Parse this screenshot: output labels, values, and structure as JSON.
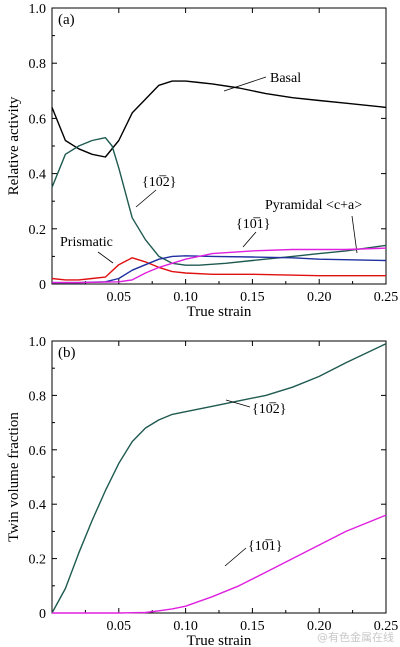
{
  "watermark": "@有色金属在线",
  "chart_data": [
    {
      "type": "line",
      "panel_label": "(a)",
      "xlabel": "True strain",
      "ylabel": "Relative activity",
      "xlim": [
        0,
        0.25
      ],
      "ylim": [
        0,
        1.0
      ],
      "xticks": [
        0.05,
        0.1,
        0.15,
        0.2,
        0.25
      ],
      "xtick_labels": [
        "0.05",
        "0.10",
        "0.15",
        "0.20",
        "0.25"
      ],
      "yticks": [
        0,
        0.2,
        0.4,
        0.6,
        0.8,
        1.0
      ],
      "ytick_labels": [
        "0",
        "0.2",
        "0.4",
        "0.6",
        "0.8",
        "1.0"
      ],
      "series": [
        {
          "name": "Basal",
          "color": "#000000",
          "x": [
            0,
            0.01,
            0.02,
            0.03,
            0.04,
            0.05,
            0.06,
            0.07,
            0.08,
            0.09,
            0.1,
            0.11,
            0.12,
            0.14,
            0.16,
            0.18,
            0.2,
            0.22,
            0.25
          ],
          "y": [
            0.64,
            0.52,
            0.49,
            0.47,
            0.46,
            0.52,
            0.62,
            0.67,
            0.72,
            0.735,
            0.735,
            0.73,
            0.725,
            0.71,
            0.69,
            0.675,
            0.665,
            0.655,
            0.64
          ]
        },
        {
          "name": "{10̅2}",
          "color": "#1f5a50",
          "x": [
            0,
            0.01,
            0.02,
            0.03,
            0.04,
            0.045,
            0.05,
            0.06,
            0.07,
            0.08,
            0.09,
            0.1,
            0.11,
            0.13,
            0.15,
            0.18,
            0.2,
            0.22,
            0.25
          ],
          "y": [
            0.35,
            0.47,
            0.5,
            0.52,
            0.53,
            0.5,
            0.42,
            0.24,
            0.16,
            0.1,
            0.075,
            0.068,
            0.068,
            0.075,
            0.085,
            0.1,
            0.11,
            0.12,
            0.14
          ]
        },
        {
          "name": "Prismatic",
          "color": "#e01010",
          "x": [
            0,
            0.01,
            0.02,
            0.03,
            0.04,
            0.05,
            0.06,
            0.07,
            0.08,
            0.09,
            0.1,
            0.12,
            0.15,
            0.2,
            0.25
          ],
          "y": [
            0.02,
            0.015,
            0.015,
            0.02,
            0.025,
            0.07,
            0.095,
            0.08,
            0.06,
            0.045,
            0.04,
            0.035,
            0.035,
            0.03,
            0.03
          ]
        },
        {
          "name": "Pyramidal <c+a>",
          "color": "#1f2fa0",
          "x": [
            0,
            0.02,
            0.04,
            0.05,
            0.06,
            0.07,
            0.08,
            0.09,
            0.1,
            0.12,
            0.15,
            0.18,
            0.2,
            0.25
          ],
          "y": [
            0.005,
            0.005,
            0.008,
            0.02,
            0.05,
            0.07,
            0.09,
            0.1,
            0.102,
            0.1,
            0.098,
            0.095,
            0.09,
            0.085
          ]
        },
        {
          "name": "{10̅1}",
          "color": "#e020e0",
          "x": [
            0,
            0.02,
            0.05,
            0.06,
            0.07,
            0.08,
            0.09,
            0.1,
            0.12,
            0.15,
            0.18,
            0.2,
            0.22,
            0.25
          ],
          "y": [
            0.005,
            0.005,
            0.008,
            0.015,
            0.04,
            0.06,
            0.075,
            0.09,
            0.11,
            0.12,
            0.125,
            0.125,
            0.125,
            0.13
          ]
        }
      ]
    },
    {
      "type": "line",
      "panel_label": "(b)",
      "xlabel": "True strain",
      "ylabel": "Twin volume fraction",
      "xlim": [
        0,
        0.25
      ],
      "ylim": [
        0,
        1.0
      ],
      "xticks": [
        0.05,
        0.1,
        0.15,
        0.2,
        0.25
      ],
      "xtick_labels": [
        "0.05",
        "0.10",
        "0.15",
        "0.20",
        "0.25"
      ],
      "yticks": [
        0,
        0.2,
        0.4,
        0.6,
        0.8,
        1.0
      ],
      "ytick_labels": [
        "0",
        "0.2",
        "0.4",
        "0.6",
        "0.8",
        "1.0"
      ],
      "series": [
        {
          "name": "{10̅2}",
          "color": "#1f5a50",
          "x": [
            0,
            0.01,
            0.02,
            0.03,
            0.04,
            0.05,
            0.06,
            0.07,
            0.08,
            0.09,
            0.1,
            0.12,
            0.14,
            0.16,
            0.18,
            0.2,
            0.22,
            0.25
          ],
          "y": [
            0,
            0.09,
            0.22,
            0.34,
            0.45,
            0.55,
            0.63,
            0.68,
            0.71,
            0.73,
            0.74,
            0.76,
            0.78,
            0.8,
            0.83,
            0.87,
            0.92,
            0.99
          ]
        },
        {
          "name": "{10̅1}",
          "color": "#e020e0",
          "x": [
            0,
            0.05,
            0.07,
            0.08,
            0.09,
            0.1,
            0.12,
            0.14,
            0.16,
            0.18,
            0.2,
            0.22,
            0.25
          ],
          "y": [
            0,
            0,
            0.002,
            0.008,
            0.015,
            0.025,
            0.06,
            0.1,
            0.15,
            0.2,
            0.25,
            0.3,
            0.36
          ]
        }
      ]
    }
  ]
}
